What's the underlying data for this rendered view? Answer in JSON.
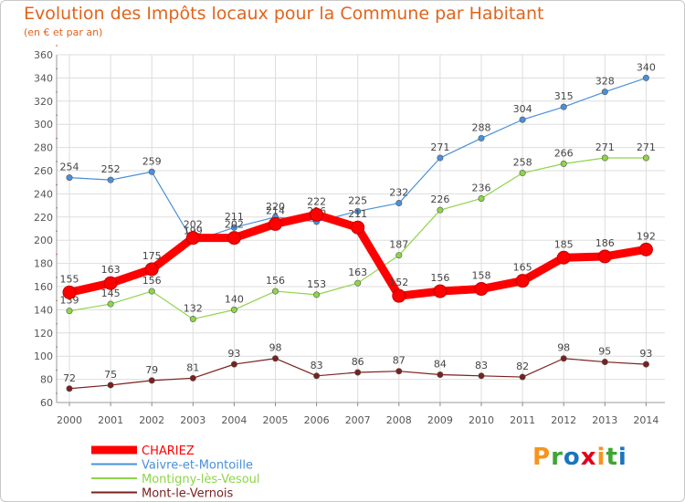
{
  "header": {
    "title": "Evolution des Impôts locaux pour la Commune par Habitant",
    "subtitle": "(en € et par an)"
  },
  "logo": {
    "text": "Proxiti",
    "colors": [
      "#f7941d",
      "#3fa535",
      "#1a75bc",
      "#e2001a"
    ]
  },
  "chart_data": {
    "type": "line",
    "title": "Evolution des Impôts locaux pour la Commune par Habitant",
    "subtitle": "(en € et par an)",
    "x": [
      "2000",
      "2001",
      "2002",
      "2003",
      "2004",
      "2005",
      "2006",
      "2007",
      "2008",
      "2009",
      "2010",
      "2011",
      "2012",
      "2013",
      "2014"
    ],
    "ylim": [
      60,
      360
    ],
    "yticks": [
      60,
      80,
      100,
      120,
      140,
      160,
      180,
      200,
      220,
      240,
      260,
      280,
      300,
      320,
      340,
      360
    ],
    "grid": true,
    "legend_position": "bottom-left",
    "series": [
      {
        "name": "CHARIEZ",
        "color": "#ff0000",
        "values": [
          155,
          163,
          175,
          202,
          202,
          214,
          222,
          211,
          152,
          156,
          158,
          165,
          185,
          186,
          192
        ]
      },
      {
        "name": "Vaivre-et-Montoille",
        "color": "#4a90d9",
        "values": [
          254,
          252,
          259,
          199,
          211,
          220,
          216,
          225,
          232,
          271,
          288,
          304,
          315,
          328,
          340
        ]
      },
      {
        "name": "Montigny-lès-Vesoul",
        "color": "#8fd44a",
        "values": [
          139,
          145,
          156,
          132,
          140,
          156,
          153,
          163,
          187,
          226,
          236,
          258,
          266,
          271,
          271
        ]
      },
      {
        "name": "Mont-le-Vernois",
        "color": "#7a2020",
        "values": [
          72,
          75,
          79,
          81,
          93,
          98,
          83,
          86,
          87,
          84,
          83,
          82,
          98,
          95,
          93
        ]
      }
    ]
  }
}
